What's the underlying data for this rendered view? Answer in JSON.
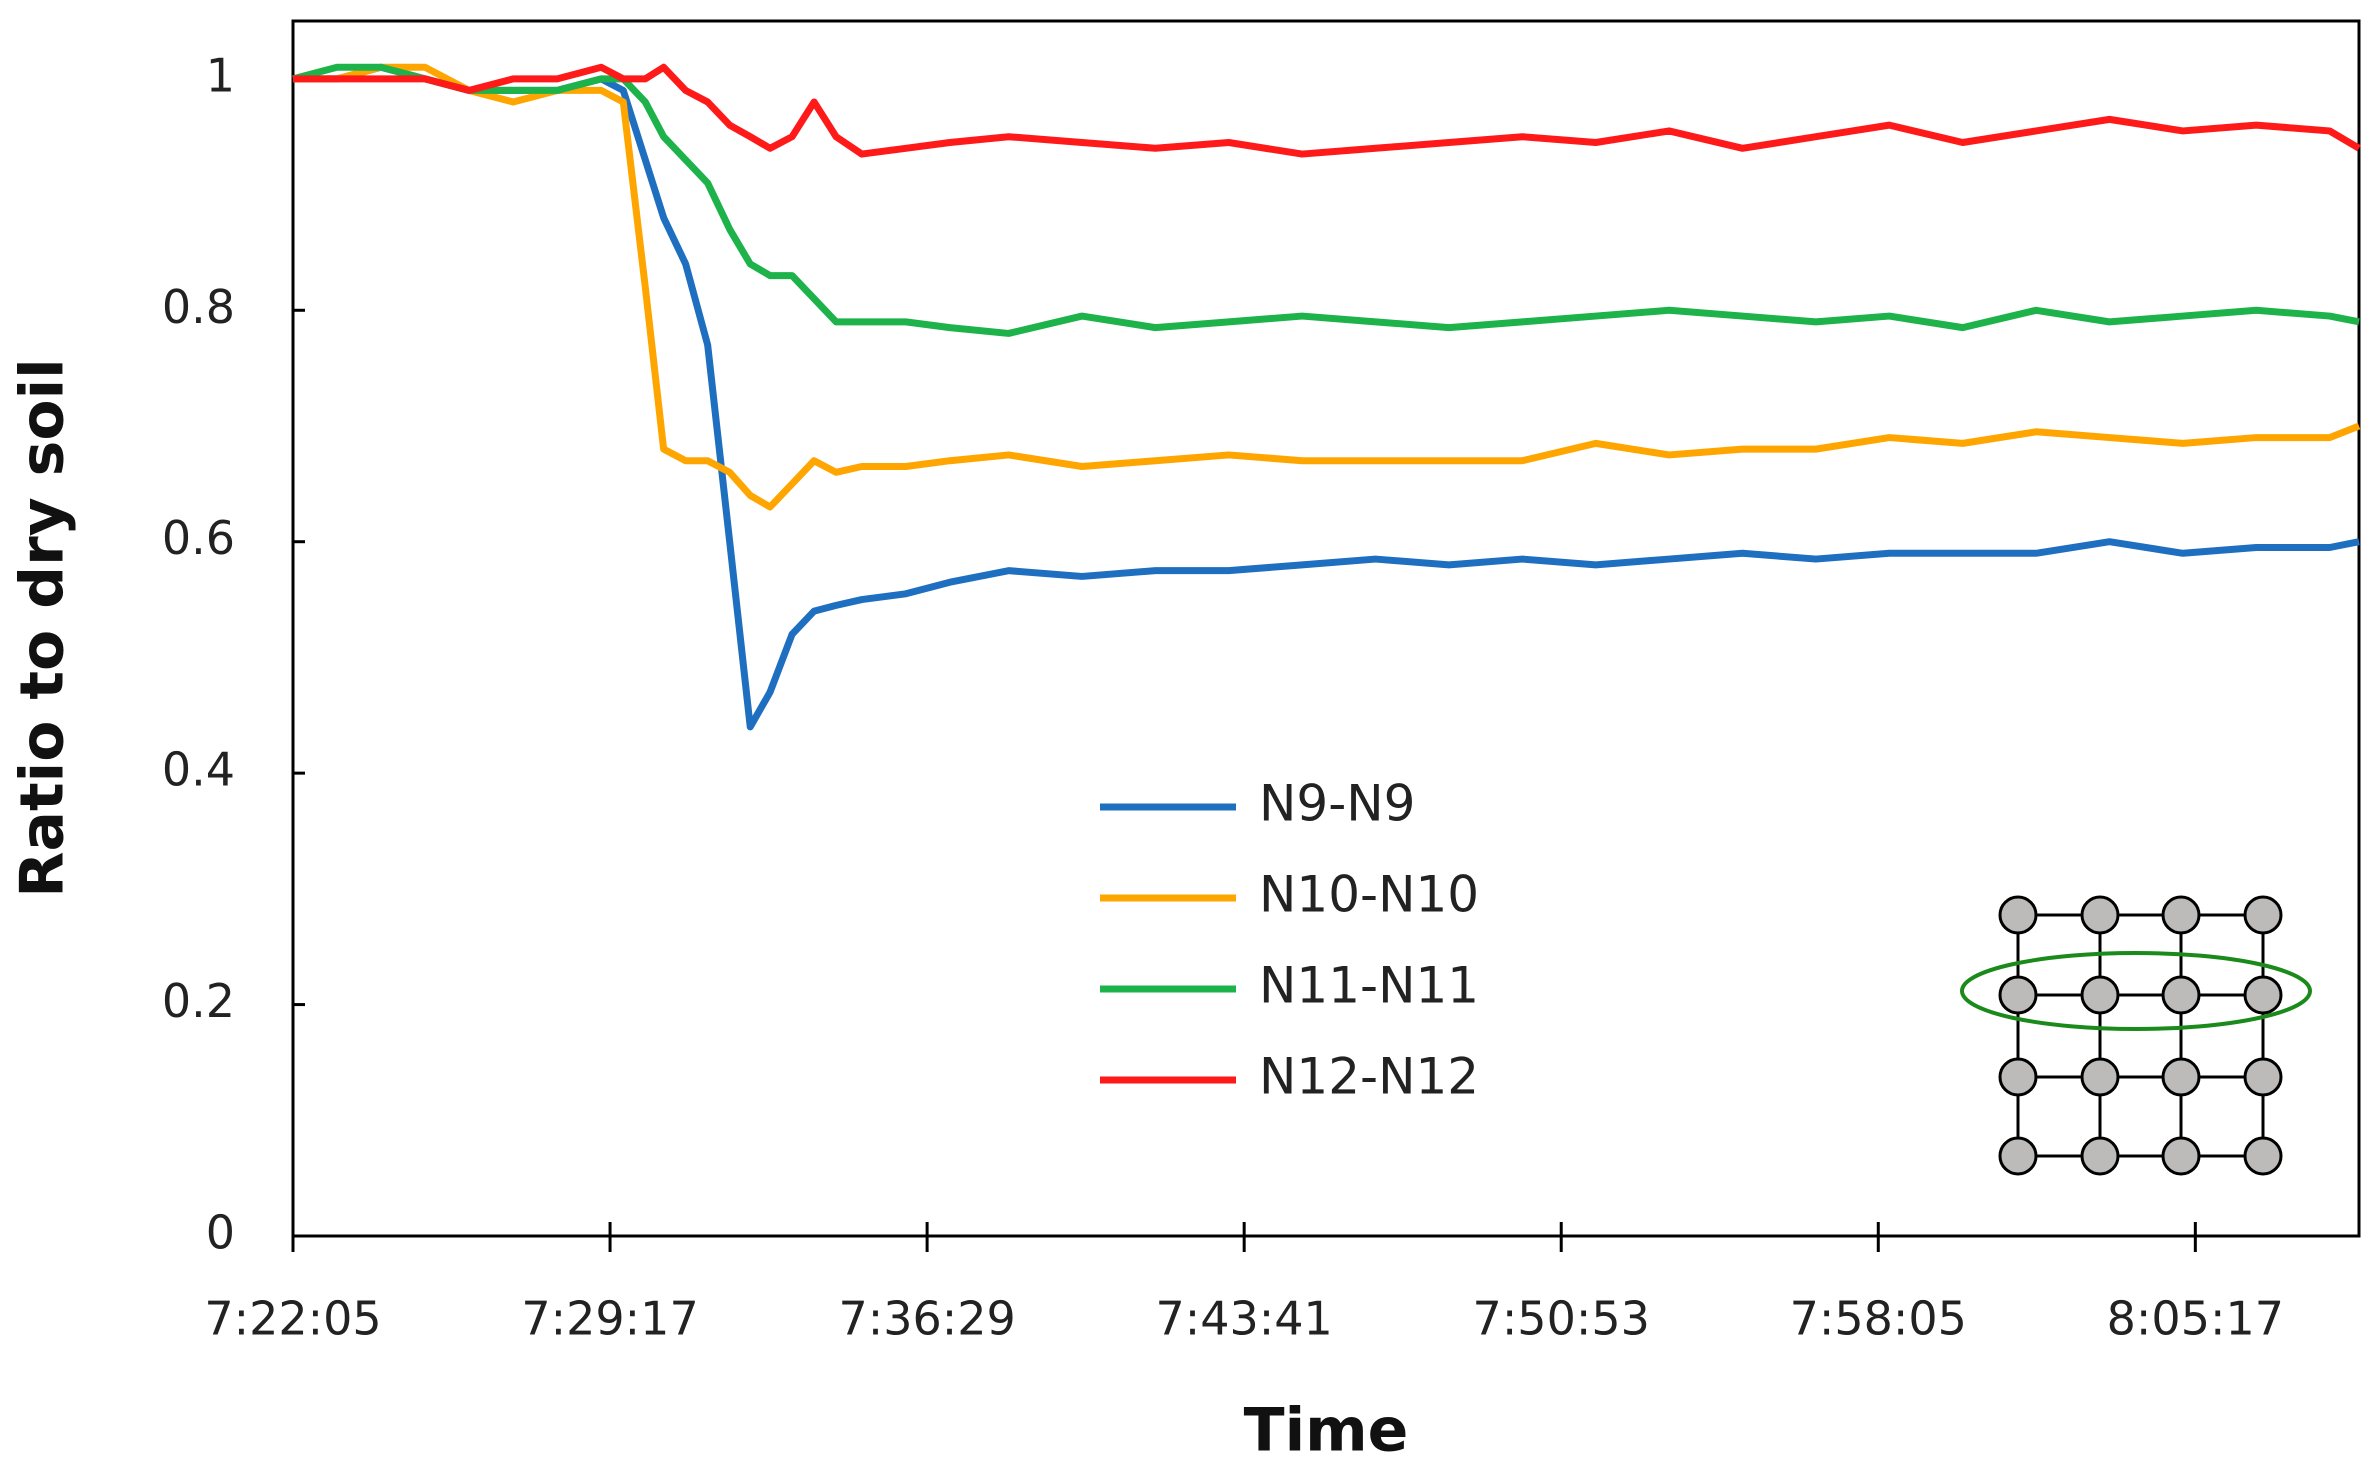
{
  "chart_data": {
    "type": "line",
    "x_label": "Time",
    "y_label": "Ratio to dry soil",
    "x": [
      26525,
      26585,
      26645,
      26705,
      26765,
      26825,
      26885,
      26945,
      26975,
      27005,
      27030,
      27060,
      27090,
      27120,
      27148,
      27175,
      27205,
      27235,
      27265,
      27300,
      27360,
      27420,
      27500,
      27600,
      27700,
      27800,
      27900,
      28000,
      28100,
      28200,
      28300,
      28400,
      28500,
      28600,
      28700,
      28800,
      28900,
      29000,
      29100,
      29200,
      29300,
      29340
    ],
    "series": [
      {
        "name": "N9-N9",
        "color": "#1f6fc0",
        "values": [
          1.0,
          1.0,
          1.01,
          1.0,
          0.99,
          0.99,
          0.99,
          1.0,
          0.99,
          0.93,
          0.88,
          0.84,
          0.77,
          0.6,
          0.44,
          0.47,
          0.52,
          0.54,
          0.545,
          0.55,
          0.555,
          0.565,
          0.575,
          0.57,
          0.575,
          0.575,
          0.58,
          0.585,
          0.58,
          0.585,
          0.58,
          0.585,
          0.59,
          0.585,
          0.59,
          0.59,
          0.59,
          0.6,
          0.59,
          0.595,
          0.595,
          0.6
        ]
      },
      {
        "name": "N10-N10",
        "color": "#ffa500",
        "values": [
          1.0,
          1.0,
          1.01,
          1.01,
          0.99,
          0.98,
          0.99,
          0.99,
          0.98,
          0.82,
          0.68,
          0.67,
          0.67,
          0.66,
          0.64,
          0.63,
          0.65,
          0.67,
          0.66,
          0.665,
          0.665,
          0.67,
          0.675,
          0.665,
          0.67,
          0.675,
          0.67,
          0.67,
          0.67,
          0.67,
          0.685,
          0.675,
          0.68,
          0.68,
          0.69,
          0.685,
          0.695,
          0.69,
          0.685,
          0.69,
          0.69,
          0.7
        ]
      },
      {
        "name": "N11-N11",
        "color": "#1db34a",
        "values": [
          1.0,
          1.01,
          1.01,
          1.0,
          0.99,
          0.99,
          0.99,
          1.0,
          1.0,
          0.98,
          0.95,
          0.93,
          0.91,
          0.87,
          0.84,
          0.83,
          0.83,
          0.81,
          0.79,
          0.79,
          0.79,
          0.785,
          0.78,
          0.795,
          0.785,
          0.79,
          0.795,
          0.79,
          0.785,
          0.79,
          0.795,
          0.8,
          0.795,
          0.79,
          0.795,
          0.785,
          0.8,
          0.79,
          0.795,
          0.8,
          0.795,
          0.79
        ]
      },
      {
        "name": "N12-N12",
        "color": "#ff1a1a",
        "values": [
          1.0,
          1.0,
          1.0,
          1.0,
          0.99,
          1.0,
          1.0,
          1.01,
          1.0,
          1.0,
          1.01,
          0.99,
          0.98,
          0.96,
          0.95,
          0.94,
          0.95,
          0.98,
          0.95,
          0.935,
          0.94,
          0.945,
          0.95,
          0.945,
          0.94,
          0.945,
          0.935,
          0.94,
          0.945,
          0.95,
          0.945,
          0.955,
          0.94,
          0.95,
          0.96,
          0.945,
          0.955,
          0.965,
          0.955,
          0.96,
          0.955,
          0.94
        ]
      }
    ],
    "xlim": [
      26525,
      29340
    ],
    "xticks": [
      {
        "value": 26525,
        "label": "7:22:05"
      },
      {
        "value": 26957,
        "label": "7:29:17"
      },
      {
        "value": 27389,
        "label": "7:36:29"
      },
      {
        "value": 27821,
        "label": "7:43:41"
      },
      {
        "value": 28253,
        "label": "7:50:53"
      },
      {
        "value": 28685,
        "label": "7:58:05"
      },
      {
        "value": 29117,
        "label": "8:05:17"
      }
    ],
    "ylim": [
      0,
      1.05
    ],
    "yticks": [
      0,
      0.2,
      0.4,
      0.6,
      0.8,
      1
    ],
    "grid": false
  }
}
